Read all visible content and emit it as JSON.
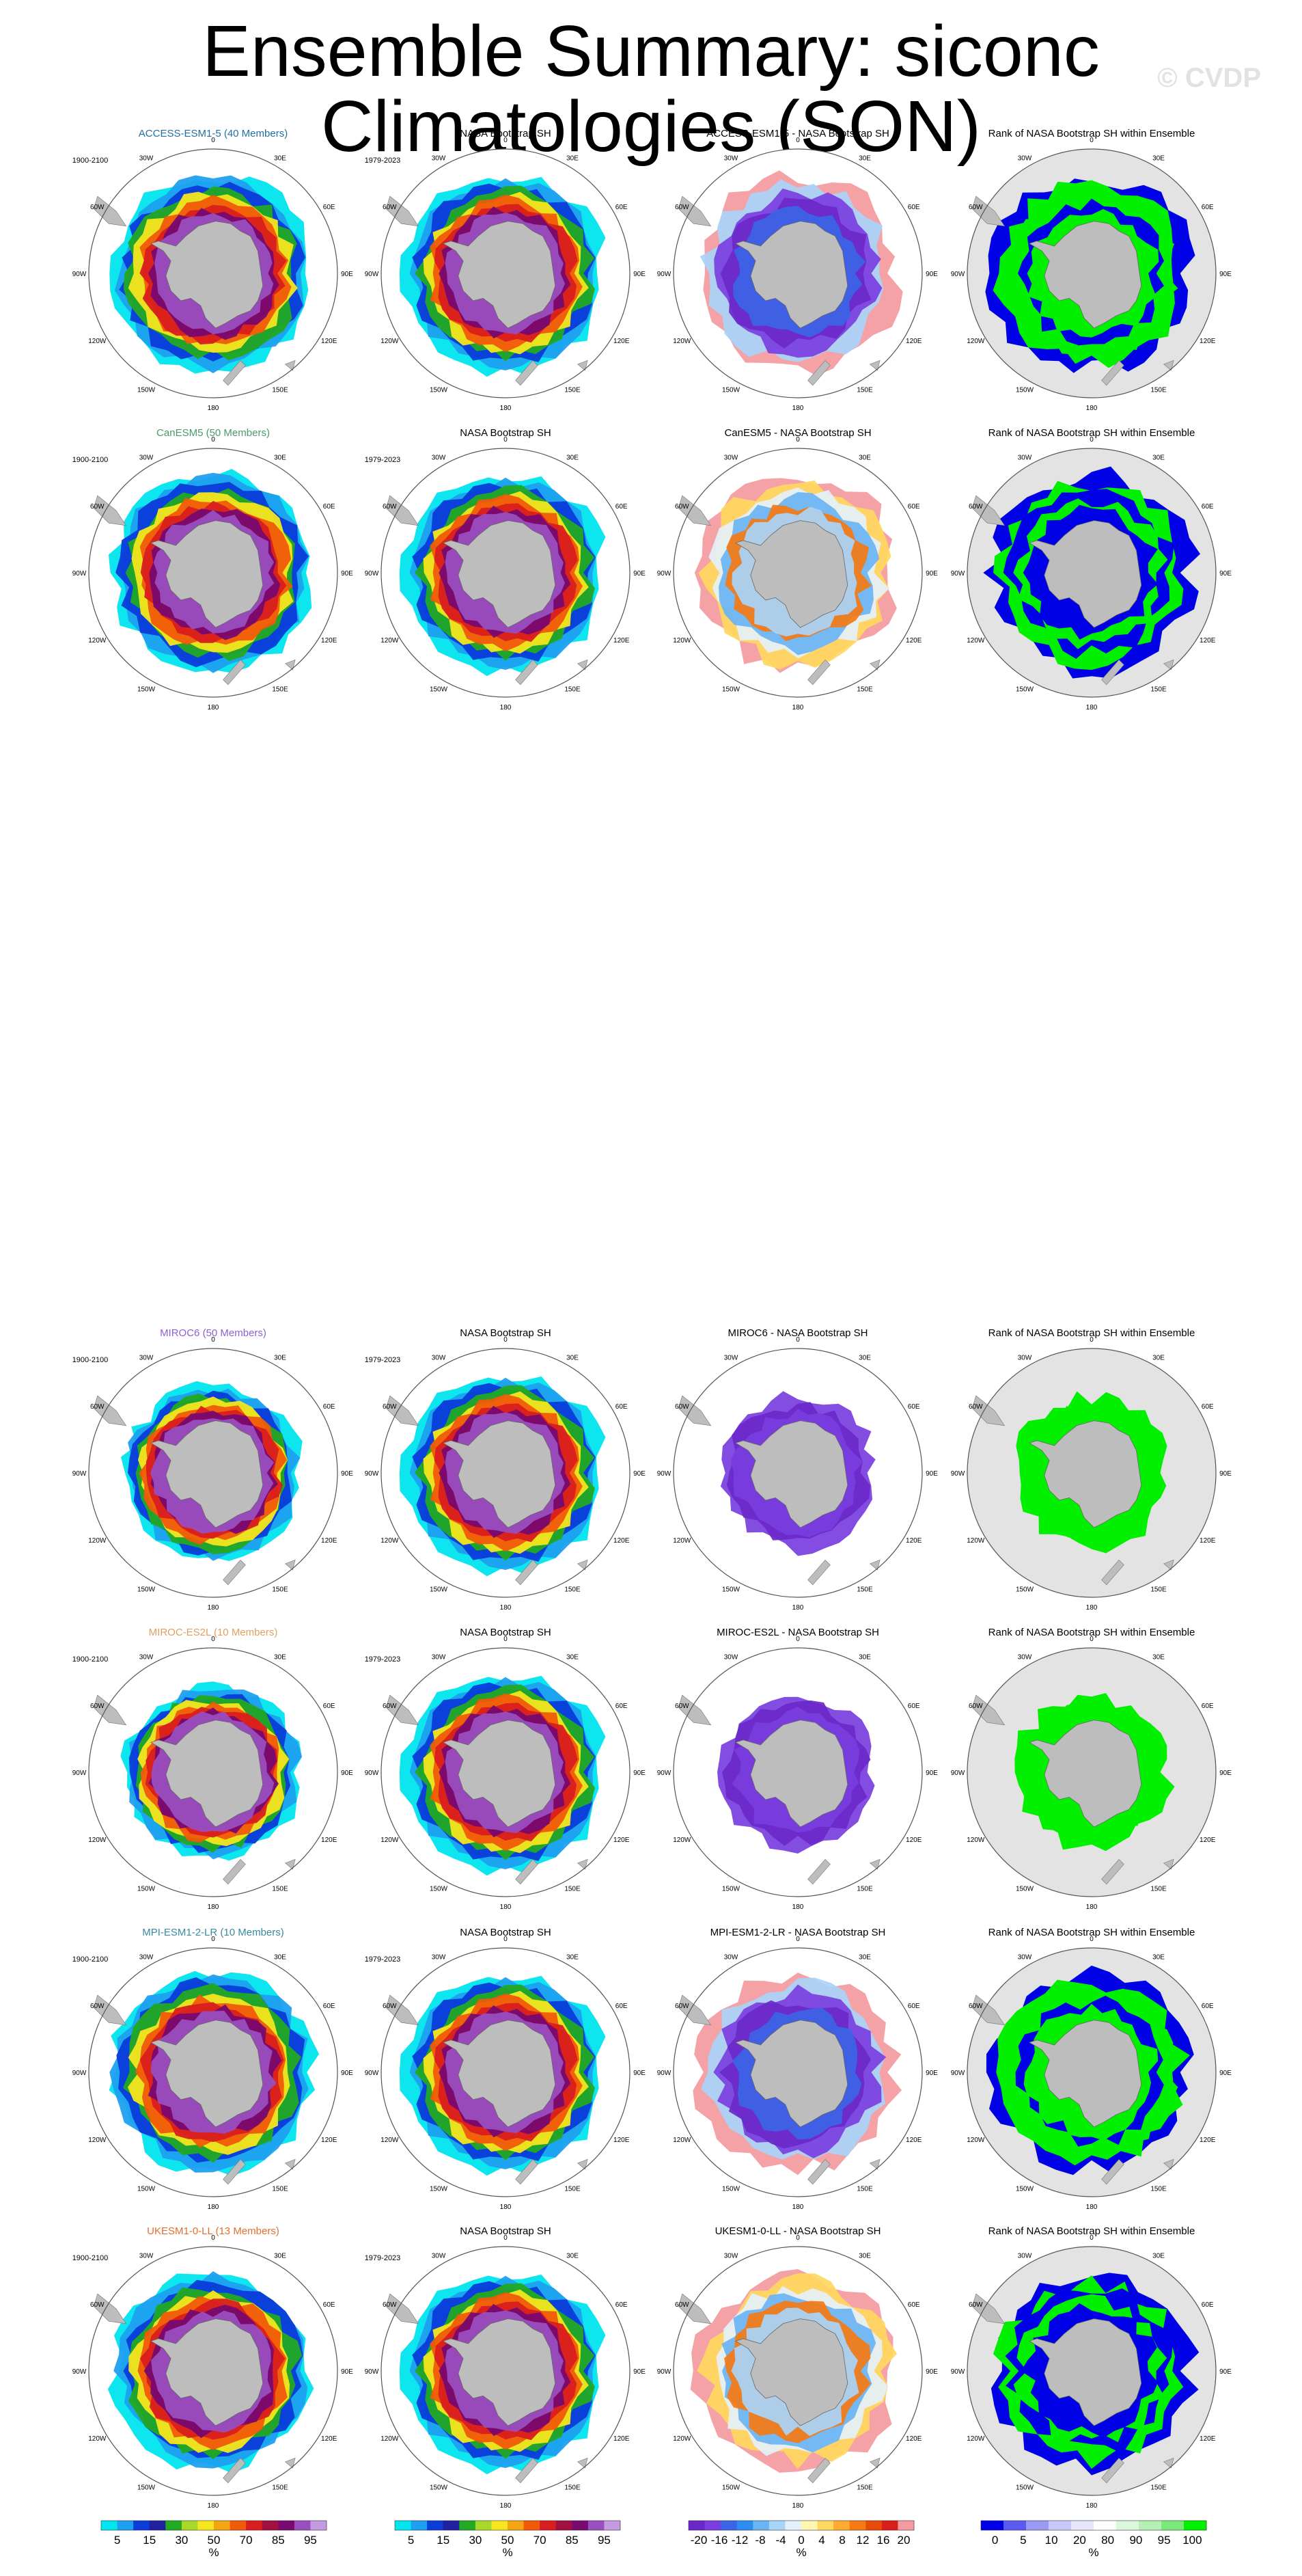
{
  "title": "Ensemble Summary: siconc Climatologies (SON)",
  "watermark": "© CVDP",
  "lon_labels": [
    "0",
    "30E",
    "60E",
    "90E",
    "120E",
    "150E",
    "180",
    "150W",
    "120W",
    "90W",
    "60W",
    "30W"
  ],
  "colors": {
    "land": "#bdbdbd",
    "ocean_rank_bg": "#e3e3e3",
    "circle": "#555555"
  },
  "chart_data": {
    "type": "heatmap",
    "projection": "south-polar-stereographic",
    "rows": [
      {
        "model": "ACCESS-ESM1-5 (40 Members)",
        "model_color": "#1f6fa3",
        "model_years": "1900-2100",
        "obs_title": "NASA Bootstrap SH",
        "obs_years": "1979-2023",
        "diff_title": "ACCESS-ESM1-5 - NASA Bootstrap SH",
        "rank_title": "Rank of NASA Bootstrap SH within Ensemble",
        "model_extent": 1.02,
        "diff_style": "neg_mixed",
        "rank_style": "green_blue"
      },
      {
        "model": "CanESM5 (50 Members)",
        "model_color": "#4a9a6a",
        "model_years": "1900-2100",
        "obs_title": "NASA Bootstrap SH",
        "obs_years": "1979-2023",
        "diff_title": "CanESM5 - NASA Bootstrap SH",
        "rank_title": "Rank of NASA Bootstrap SH within Ensemble",
        "model_extent": 1.05,
        "diff_style": "mixed",
        "rank_style": "blue_green"
      },
      {
        "model": "MIROC6 (50 Members)",
        "model_color": "#8e5fd6",
        "model_years": "1900-2100",
        "obs_title": "NASA Bootstrap SH",
        "obs_years": "1979-2023",
        "diff_title": "MIROC6 - NASA Bootstrap SH",
        "rank_title": "Rank of NASA Bootstrap SH within Ensemble",
        "model_extent": 0.62,
        "diff_style": "neg_ring",
        "rank_style": "green_ring"
      },
      {
        "model": "MIROC-ES2L (10 Members)",
        "model_color": "#e0a060",
        "model_years": "1900-2100",
        "obs_title": "NASA Bootstrap SH",
        "obs_years": "1979-2023",
        "diff_title": "MIROC-ES2L - NASA Bootstrap SH",
        "rank_title": "Rank of NASA Bootstrap SH within Ensemble",
        "model_extent": 0.6,
        "diff_style": "neg_ring",
        "rank_style": "green_ring"
      },
      {
        "model": "MPI-ESM1-2-LR (10 Members)",
        "model_color": "#3a8aa0",
        "model_years": "1900-2100",
        "obs_title": "NASA Bootstrap SH",
        "obs_years": "1979-2023",
        "diff_title": "MPI-ESM1-2-LR - NASA Bootstrap SH",
        "rank_title": "Rank of NASA Bootstrap SH within Ensemble",
        "model_extent": 1.08,
        "diff_style": "neg_mixed",
        "rank_style": "green_blue"
      },
      {
        "model": "UKESM1-0-LL (13 Members)",
        "model_color": "#e07030",
        "model_years": "1900-2100",
        "obs_title": "NASA Bootstrap SH",
        "obs_years": "1979-2023",
        "diff_title": "UKESM1-0-LL - NASA Bootstrap SH",
        "rank_title": "Rank of NASA Bootstrap SH within Ensemble",
        "model_extent": 1.0,
        "diff_style": "mixed",
        "rank_style": "blue_green"
      }
    ],
    "colorbars": [
      {
        "name": "concentration",
        "unit": "%",
        "labels": [
          "5",
          "15",
          "30",
          "50",
          "70",
          "85",
          "95"
        ],
        "colors": [
          "#00e5ee",
          "#1ea0f0",
          "#0a3cd8",
          "#2020a0",
          "#22aa22",
          "#a8d82a",
          "#f5e61e",
          "#f5a514",
          "#f05a0a",
          "#d81e1e",
          "#a01040",
          "#780a70",
          "#9a4ec0",
          "#c49ae0"
        ]
      },
      {
        "name": "concentration-obs",
        "unit": "%",
        "labels": [
          "5",
          "15",
          "30",
          "50",
          "70",
          "85",
          "95"
        ],
        "colors": [
          "#00e5ee",
          "#1ea0f0",
          "#0a3cd8",
          "#2020a0",
          "#22aa22",
          "#a8d82a",
          "#f5e61e",
          "#f5a514",
          "#f05a0a",
          "#d81e1e",
          "#a01040",
          "#780a70",
          "#9a4ec0",
          "#c49ae0"
        ]
      },
      {
        "name": "difference",
        "unit": "%",
        "labels": [
          "-20",
          "-16",
          "-12",
          "-8",
          "-4",
          "0",
          "4",
          "8",
          "12",
          "16",
          "20"
        ],
        "colors": [
          "#6a28c8",
          "#7a3ee0",
          "#3c64e6",
          "#2e8cf0",
          "#6ab4f4",
          "#a8d4f8",
          "#e4f0fa",
          "#fff6b0",
          "#ffd860",
          "#ffaa30",
          "#f57a14",
          "#e84a0a",
          "#d8201a",
          "#f49aa0"
        ]
      },
      {
        "name": "rank",
        "unit": "%",
        "labels": [
          "0",
          "5",
          "10",
          "20",
          "80",
          "90",
          "95",
          "100"
        ],
        "colors": [
          "#0000e6",
          "#5a5af0",
          "#9a9af5",
          "#c8c8f8",
          "#e6e6fa",
          "#ffffff",
          "#dcf8dc",
          "#b4f0b4",
          "#7ae87a",
          "#00f000"
        ]
      }
    ]
  }
}
